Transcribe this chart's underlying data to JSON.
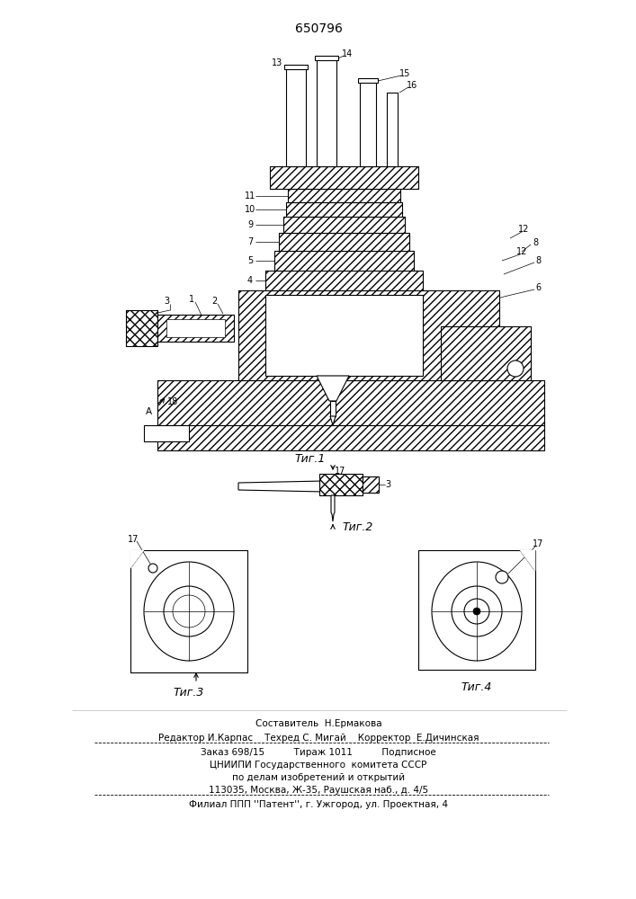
{
  "patent_number": "650796",
  "background_color": "#ffffff",
  "fig1_label": "Τиг.1",
  "fig2_label": "Τиг.2",
  "fig3_label": "Τиг.3",
  "fig4_label": "Τиг.4",
  "footer_line0": "Составитель  Н.Ермакова",
  "footer_line1": "Редактор И.Карпас    Техред С. Мигай    Корректор  Е.Дичинская",
  "footer_line2": "Заказ 698/15          Тираж 1011          Подписное",
  "footer_line3": "ЦНИИПИ Государственного  комитета СССР",
  "footer_line4": "по делам изобретений и открытий",
  "footer_line5": "113035, Москва, Ж-35, Раушская наб., д. 4/5",
  "footer_line6": "Филиал ППП ''Патент'', г. Ужгород, ул. Проектная, 4"
}
